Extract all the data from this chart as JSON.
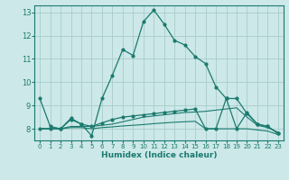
{
  "xlabel": "Humidex (Indice chaleur)",
  "bg_color": "#cce8e8",
  "grid_color": "#aacccc",
  "line_color": "#1a7a6e",
  "x_min": -0.5,
  "x_max": 23.5,
  "y_min": 7.5,
  "y_max": 13.3,
  "yticks": [
    8,
    9,
    10,
    11,
    12,
    13
  ],
  "xticks": [
    0,
    1,
    2,
    3,
    4,
    5,
    6,
    7,
    8,
    9,
    10,
    11,
    12,
    13,
    14,
    15,
    16,
    17,
    18,
    19,
    20,
    21,
    22,
    23
  ],
  "series": [
    {
      "x": [
        0,
        1,
        2,
        3,
        4,
        5,
        6,
        7,
        8,
        9,
        10,
        11,
        12,
        13,
        14,
        15,
        16,
        17,
        18,
        19,
        20,
        21,
        22,
        23
      ],
      "y": [
        9.3,
        8.1,
        8.0,
        8.4,
        8.2,
        7.7,
        9.3,
        10.3,
        11.4,
        11.15,
        12.6,
        13.1,
        12.5,
        11.8,
        11.6,
        11.1,
        10.8,
        9.8,
        9.3,
        8.0,
        8.7,
        8.2,
        8.1,
        7.8
      ],
      "has_markers": true
    },
    {
      "x": [
        0,
        1,
        2,
        3,
        4,
        5,
        6,
        7,
        8,
        9,
        10,
        11,
        12,
        13,
        14,
        15,
        16,
        17,
        18,
        19,
        20,
        21,
        22,
        23
      ],
      "y": [
        8.0,
        8.0,
        8.0,
        8.45,
        8.2,
        8.1,
        8.25,
        8.4,
        8.5,
        8.55,
        8.6,
        8.65,
        8.7,
        8.75,
        8.8,
        8.85,
        8.0,
        8.0,
        9.3,
        9.3,
        8.65,
        8.2,
        8.1,
        7.8
      ],
      "has_markers": true
    },
    {
      "x": [
        0,
        1,
        2,
        3,
        4,
        5,
        6,
        7,
        8,
        9,
        10,
        11,
        12,
        13,
        14,
        15,
        16,
        17,
        18,
        19,
        20,
        21,
        22,
        23
      ],
      "y": [
        8.0,
        8.0,
        8.0,
        8.1,
        8.1,
        8.1,
        8.15,
        8.2,
        8.3,
        8.4,
        8.5,
        8.55,
        8.6,
        8.65,
        8.7,
        8.72,
        8.75,
        8.8,
        8.85,
        8.9,
        8.5,
        8.15,
        8.05,
        7.85
      ],
      "has_markers": false
    },
    {
      "x": [
        0,
        1,
        2,
        3,
        4,
        5,
        6,
        7,
        8,
        9,
        10,
        11,
        12,
        13,
        14,
        15,
        16,
        17,
        18,
        19,
        20,
        21,
        22,
        23
      ],
      "y": [
        8.0,
        8.0,
        8.0,
        8.05,
        8.05,
        8.0,
        8.05,
        8.08,
        8.12,
        8.15,
        8.18,
        8.22,
        8.25,
        8.28,
        8.3,
        8.32,
        8.0,
        8.0,
        8.0,
        8.0,
        8.0,
        7.95,
        7.9,
        7.75
      ],
      "has_markers": false
    }
  ]
}
